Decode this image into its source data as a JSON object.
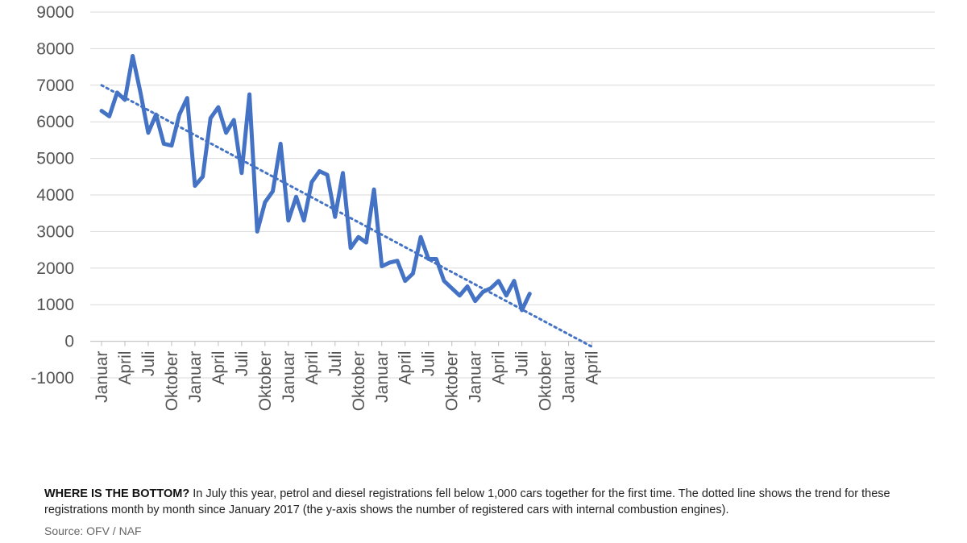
{
  "caption": {
    "headline": "WHERE IS THE BOTTOM?",
    "text": " In July this year, petrol and diesel registrations fell below 1,000 cars together for the first time. The dotted line shows the trend for these registrations month by month since January 2017 (the y-axis shows the number of registered cars with internal combustion engines).",
    "source": "Source: OFV / NAF"
  },
  "colors": {
    "series": "#4472c4",
    "grid": "#d9d9d9",
    "tick_text": "#555555"
  },
  "chart_data": {
    "type": "line",
    "title": "",
    "xlabel": "",
    "ylabel": "",
    "ylim": [
      -1000,
      9000
    ],
    "yticks": [
      9000,
      8000,
      7000,
      6000,
      5000,
      4000,
      3000,
      2000,
      1000,
      0,
      -1000
    ],
    "grid": true,
    "x_tick_labels": [
      "Januar",
      "April",
      "Juli",
      "Oktober",
      "Januar",
      "April",
      "Juli",
      "Oktober",
      "Januar",
      "April",
      "Juli",
      "Oktober",
      "Januar",
      "April",
      "Juli",
      "Oktober",
      "Januar",
      "April",
      "Juli",
      "Oktober",
      "Januar",
      "April"
    ],
    "series": [
      {
        "style": "solid",
        "values": [
          6300,
          6150,
          6800,
          6600,
          7800,
          6800,
          5700,
          6200,
          5400,
          5350,
          6200,
          6650,
          4250,
          4500,
          6100,
          6400,
          5700,
          6050,
          4600,
          6750,
          3000,
          3800,
          4100,
          5400,
          3300,
          3950,
          3300,
          4350,
          4650,
          4550,
          3400,
          4600,
          2550,
          2850,
          2700,
          4150,
          2050,
          2150,
          2200,
          1650,
          1850,
          2850,
          2250,
          2250,
          1650,
          1450,
          1250,
          1500,
          1100,
          1350,
          1450,
          1650,
          1250,
          1650,
          850,
          1300
        ]
      },
      {
        "style": "dotted",
        "trend": true,
        "x_range": [
          1,
          64
        ],
        "values": [
          7000,
          -150
        ]
      }
    ]
  }
}
